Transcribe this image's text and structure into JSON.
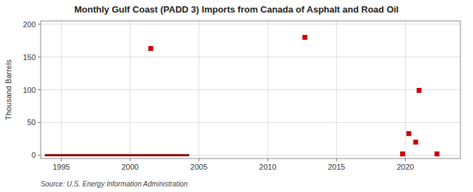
{
  "chart_data": {
    "type": "scatter",
    "title": "Monthly Gulf Coast (PADD 3) Imports from Canada of Asphalt and Road Oil",
    "ylabel": "Thousand Barrels",
    "source": "Source: U.S. Energy Information Administration",
    "xlim": [
      1993.5,
      2024
    ],
    "ylim": [
      -5,
      205
    ],
    "xticks": [
      1995,
      2000,
      2005,
      2010,
      2015,
      2020
    ],
    "yticks": [
      0,
      50,
      100,
      150,
      200
    ],
    "grid": true,
    "series": [
      {
        "type": "line",
        "color": "#8b0000",
        "x": [
          1993.8,
          2004.3
        ],
        "values": [
          0,
          0
        ]
      },
      {
        "type": "scatter",
        "color": "#cc0000",
        "marker": "square",
        "x": [
          2001.5,
          2012.7,
          2020.25,
          2020.75,
          2021.0,
          2019.8,
          2022.3
        ],
        "values": [
          163,
          180,
          33,
          20,
          99,
          2,
          2
        ]
      }
    ]
  }
}
